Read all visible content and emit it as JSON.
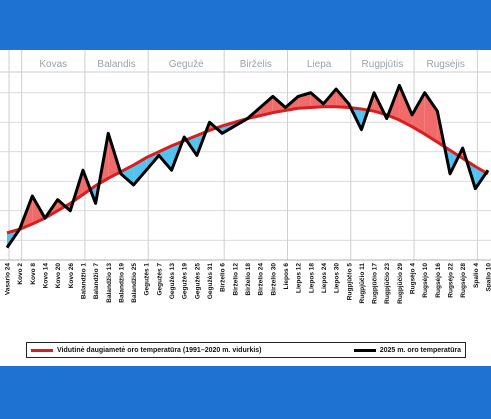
{
  "colors": {
    "normal": "#d81e1e",
    "current": "#000000",
    "above": "#f26b6b",
    "below": "#52c3ee",
    "grid": "#cfcfcf",
    "background": "#1e73d2"
  },
  "legend": {
    "normal": "Vidutinė daugiametė oro temperatūra (1991–2020 m. vidurkis)",
    "current": "2025 m. oro temperatūra"
  },
  "chart_data": {
    "type": "line",
    "months": [
      "Kovas",
      "Balandis",
      "Gegužė",
      "Birželis",
      "Liepa",
      "Rugpjūtis",
      "Rugsėjis"
    ],
    "x_tick_labels": [
      "Vasario 24",
      "Kovo 2",
      "Kovo 8",
      "Kovo 14",
      "Kovo 20",
      "Kovo 26",
      "Balandžio 1",
      "Balandžio 7",
      "Balandžio 13",
      "Balandžio 19",
      "Balandžio 25",
      "Gegužės 1",
      "Gegužės 7",
      "Gegužės 13",
      "Gegužės 19",
      "Gegužės 25",
      "Gegužės 31",
      "Birželio 6",
      "Birželio 12",
      "Birželio 18",
      "Birželio 24",
      "Birželio 30",
      "Liepos 6",
      "Liepos 12",
      "Liepos 18",
      "Liepos 24",
      "Liepos 30",
      "Rugpjūčio 5",
      "Rugpjūčio 11",
      "Rugpjūčio 17",
      "Rugpjūčio 23",
      "Rugpjūčio 29",
      "Rugsėjo 4",
      "Rugsėjo 10",
      "Rugsėjo 16",
      "Rugsėjo 22",
      "Rugsėjo 28",
      "Spalio 4",
      "Spalio 10"
    ],
    "series": [
      {
        "name": "Vidutinė daugiametė oro temperatūra (1991–2020 m. vidurkis)",
        "values": [
          1.0,
          1.5,
          2.2,
          3.0,
          4.0,
          5.0,
          6.2,
          7.4,
          8.4,
          9.3,
          10.2,
          11.2,
          12.0,
          12.8,
          13.5,
          14.2,
          14.9,
          15.5,
          16.0,
          16.5,
          16.9,
          17.3,
          17.6,
          17.9,
          18.0,
          18.1,
          18.1,
          18.0,
          17.8,
          17.5,
          17.0,
          16.3,
          15.4,
          14.4,
          13.3,
          12.2,
          11.1,
          10.0,
          9.0
        ]
      },
      {
        "name": "2025 m. oro temperatūra",
        "values": [
          -1.0,
          1.5,
          6.0,
          3.0,
          5.5,
          4.0,
          9.5,
          5.0,
          14.5,
          9.0,
          7.5,
          9.5,
          11.5,
          9.5,
          14.0,
          11.5,
          16.0,
          14.5,
          15.5,
          16.5,
          18.0,
          19.5,
          18.0,
          19.5,
          20.0,
          18.5,
          20.5,
          18.5,
          15.0,
          20.0,
          16.5,
          21.0,
          17.0,
          20.0,
          17.5,
          9.0,
          12.5,
          7.0,
          9.5
        ]
      }
    ],
    "grid": true
  }
}
